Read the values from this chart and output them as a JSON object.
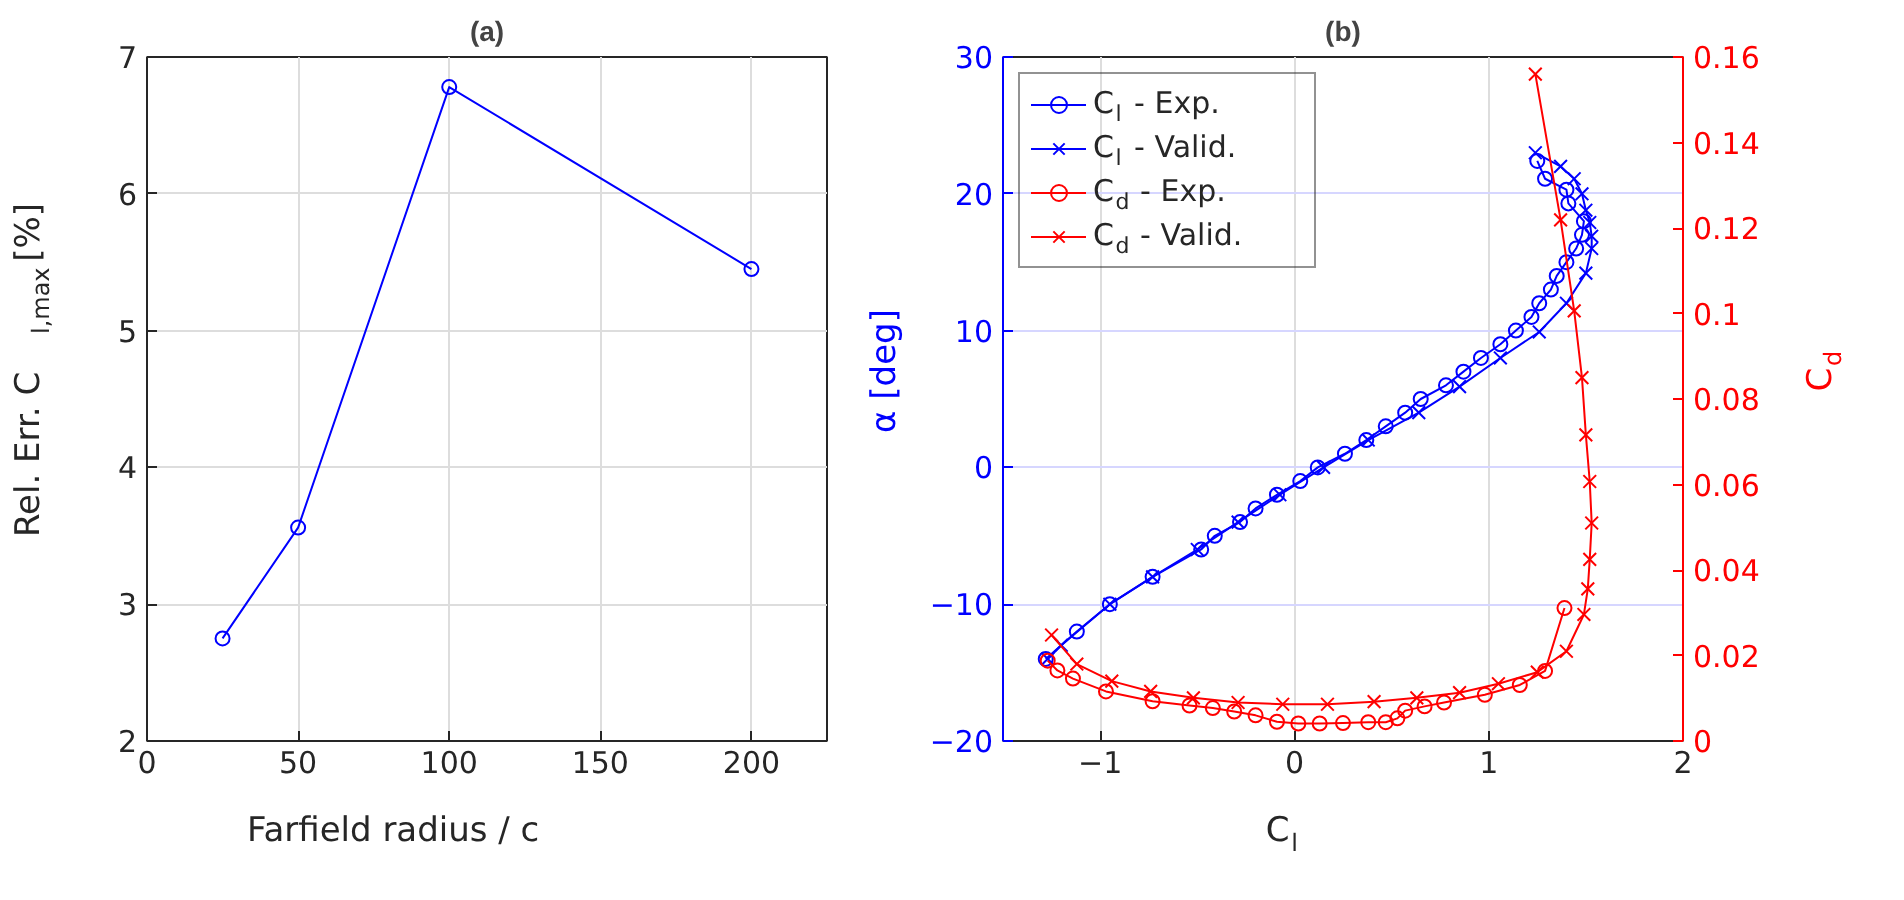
{
  "chart_data": [
    {
      "type": "line",
      "title": "(a)",
      "xlabel": "Farfield radius / c",
      "ylabel": "Rel. Err. C$_{l,max}$[%]",
      "x": [
        25,
        50,
        100,
        200
      ],
      "xlim": [
        0,
        225
      ],
      "xticks": [
        0,
        50,
        100,
        150,
        200
      ],
      "ylim": [
        2,
        7
      ],
      "yticks": [
        2,
        3,
        4,
        5,
        6,
        7
      ],
      "grid": true,
      "marker": "circle",
      "series": [
        {
          "color": "#0000ff",
          "values": [
            2.75,
            3.56,
            6.78,
            5.45
          ]
        }
      ]
    },
    {
      "type": "line",
      "title": "(b)",
      "xlabel": "C$_{l}$",
      "ylabel": "α [deg]",
      "y2label": "C$_{d}$",
      "xlim": [
        -1.5,
        2
      ],
      "xticks": [
        -1,
        0,
        1,
        2
      ],
      "ylim": [
        -20,
        30
      ],
      "yticks": [
        -20,
        -10,
        0,
        10,
        20,
        30
      ],
      "y2lim": [
        0,
        0.16
      ],
      "y2ticks": [
        0,
        0.02,
        0.04,
        0.06,
        0.08,
        0.1,
        0.12,
        0.14,
        0.16
      ],
      "grid": true,
      "legend": "top left",
      "series": [
        {
          "name": "C$_{l}$ - Exp.",
          "color": "#0000ff",
          "marker": "circle",
          "x": [
            -1.28,
            -1.12,
            -0.95,
            -0.73,
            -0.48,
            -0.41,
            -0.28,
            -0.2,
            -0.09,
            0.03,
            0.12,
            0.26,
            0.37,
            0.47,
            0.57,
            0.65,
            0.78,
            0.87,
            0.96,
            1.06,
            1.14,
            1.22,
            1.26,
            1.32,
            1.35,
            1.4,
            1.45,
            1.48,
            1.49,
            1.41,
            1.4,
            1.29,
            1.25
          ],
          "values": [
            -14,
            -12,
            -10,
            -8,
            -6,
            -5,
            -4,
            -3,
            -2,
            -1,
            0,
            1,
            2,
            3,
            4,
            5,
            6,
            7,
            8,
            9,
            10,
            11,
            12,
            13,
            14,
            15,
            16,
            17,
            18,
            19.3,
            20.3,
            21.1,
            22.4
          ]
        },
        {
          "name": "C$_{l}$ - Valid.",
          "color": "#0000ff",
          "marker": "cross",
          "x": [
            -1.27,
            -1.2,
            -0.95,
            -0.73,
            -0.5,
            -0.29,
            -0.075,
            0.15,
            0.38,
            0.64,
            0.85,
            1.06,
            1.26,
            1.4,
            1.5,
            1.53,
            1.53,
            1.52,
            1.5,
            1.48,
            1.44,
            1.37,
            1.24
          ],
          "values": [
            -14,
            -13,
            -10,
            -8,
            -6,
            -4,
            -2,
            0,
            2,
            4,
            5.9,
            8,
            9.9,
            12,
            14.2,
            16,
            16.9,
            17.9,
            18.8,
            20,
            21.1,
            22,
            23
          ]
        },
        {
          "name": "C$_{d}$ - Exp.",
          "color": "#ff0000",
          "marker": "circle",
          "axis": "y2",
          "x": [
            -1.27,
            -1.22,
            -1.14,
            -0.97,
            -0.73,
            -0.54,
            -0.42,
            -0.31,
            -0.2,
            -0.09,
            0.02,
            0.13,
            0.25,
            0.38,
            0.47,
            0.53,
            0.57,
            0.67,
            0.77,
            0.98,
            1.16,
            1.29,
            1.39
          ],
          "values": [
            0.0188,
            0.0165,
            0.0146,
            0.0116,
            0.0093,
            0.0083,
            0.0077,
            0.0069,
            0.006,
            0.0045,
            0.0041,
            0.0041,
            0.0042,
            0.0044,
            0.0044,
            0.0053,
            0.0071,
            0.0081,
            0.009,
            0.0108,
            0.0131,
            0.0164,
            0.0311
          ]
        },
        {
          "name": "C$_{d}$ - Valid.",
          "color": "#ff0000",
          "marker": "cross",
          "axis": "y2",
          "x": [
            -1.25,
            -1.12,
            -0.94,
            -0.74,
            -0.52,
            -0.29,
            -0.06,
            0.17,
            0.41,
            0.63,
            0.85,
            1.05,
            1.25,
            1.4,
            1.49,
            1.51,
            1.52,
            1.53,
            1.52,
            1.5,
            1.48,
            1.44,
            1.37,
            1.24
          ],
          "values": [
            0.0248,
            0.018,
            0.014,
            0.0116,
            0.0101,
            0.009,
            0.0086,
            0.0086,
            0.0092,
            0.0101,
            0.0113,
            0.0134,
            0.0161,
            0.021,
            0.0296,
            0.0356,
            0.0425,
            0.051,
            0.0607,
            0.0716,
            0.085,
            0.1006,
            0.1219,
            0.156
          ]
        }
      ]
    }
  ]
}
